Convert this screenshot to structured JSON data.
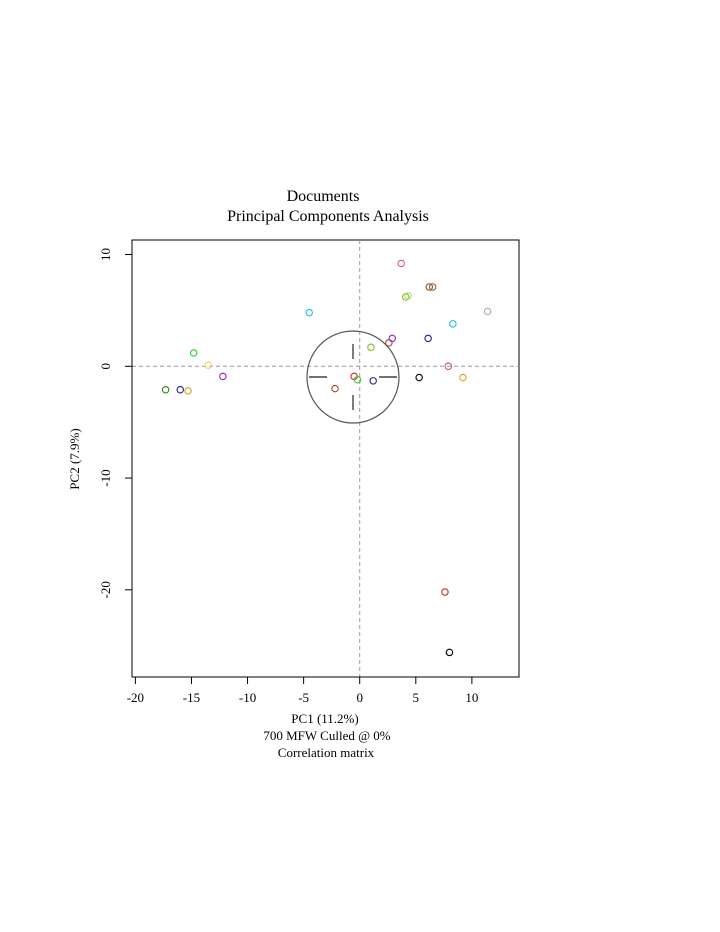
{
  "chart_data": {
    "type": "scatter",
    "title": "Documents",
    "subtitle": "Principal Components Analysis",
    "xlabel": "PC1 (11.2%)",
    "ylabel": "PC2 (7.9%)",
    "caption_lines": [
      "700 MFW  Culled @ 0%",
      "Correlation matrix"
    ],
    "xlim": [
      -20.3,
      14.2
    ],
    "ylim": [
      -27.8,
      11.3
    ],
    "x_ticks": [
      -20,
      -15,
      -10,
      -5,
      0,
      5,
      10
    ],
    "x_tick_labels": [
      "-20",
      "-15",
      "-10",
      "-5",
      "0",
      "5",
      "10"
    ],
    "y_ticks": [
      10,
      0,
      -10,
      -20
    ],
    "y_tick_labels": [
      "10",
      "0",
      "-10",
      "-20"
    ],
    "reference_lines": {
      "x": 0,
      "y": 0
    },
    "grid": false,
    "legend": "none",
    "points": [
      {
        "x": -17.3,
        "y": -2.1,
        "color": "#2e7d1e"
      },
      {
        "x": -16.0,
        "y": -2.1,
        "color": "#1a1aa8"
      },
      {
        "x": -15.3,
        "y": -2.2,
        "color": "#e0a020"
      },
      {
        "x": -14.8,
        "y": 1.2,
        "color": "#33cc33"
      },
      {
        "x": -13.5,
        "y": 0.1,
        "color": "#f0d060"
      },
      {
        "x": -12.2,
        "y": -0.9,
        "color": "#9922cc"
      },
      {
        "x": -4.5,
        "y": 4.8,
        "color": "#22bbdd"
      },
      {
        "x": -2.2,
        "y": -2.0,
        "color": "#a04a2a"
      },
      {
        "x": -0.5,
        "y": -0.9,
        "color": "#dd2222"
      },
      {
        "x": -0.2,
        "y": -1.2,
        "color": "#33cc33"
      },
      {
        "x": 1.0,
        "y": 1.7,
        "color": "#88bb22"
      },
      {
        "x": 1.2,
        "y": -1.3,
        "color": "#2a2a88"
      },
      {
        "x": 2.6,
        "y": 2.1,
        "color": "#a04a2a"
      },
      {
        "x": 2.9,
        "y": 2.5,
        "color": "#9922cc"
      },
      {
        "x": 3.7,
        "y": 9.2,
        "color": "#dd5588"
      },
      {
        "x": 4.1,
        "y": 6.2,
        "color": "#88bb22"
      },
      {
        "x": 4.3,
        "y": 6.3,
        "color": "#aadd66"
      },
      {
        "x": 5.3,
        "y": -1.0,
        "color": "#000000"
      },
      {
        "x": 6.1,
        "y": 2.5,
        "color": "#1a1aa8"
      },
      {
        "x": 6.2,
        "y": 7.1,
        "color": "#a04a2a"
      },
      {
        "x": 6.5,
        "y": 7.1,
        "color": "#886633"
      },
      {
        "x": 7.9,
        "y": 0.0,
        "color": "#cc5577"
      },
      {
        "x": 8.3,
        "y": 3.8,
        "color": "#22bbdd"
      },
      {
        "x": 9.2,
        "y": -1.0,
        "color": "#e0a020"
      },
      {
        "x": 11.4,
        "y": 4.9,
        "color": "#aaaaaa"
      },
      {
        "x": 7.6,
        "y": -20.2,
        "color": "#dd2222"
      },
      {
        "x": 8.0,
        "y": -25.6,
        "color": "#000000"
      }
    ]
  }
}
